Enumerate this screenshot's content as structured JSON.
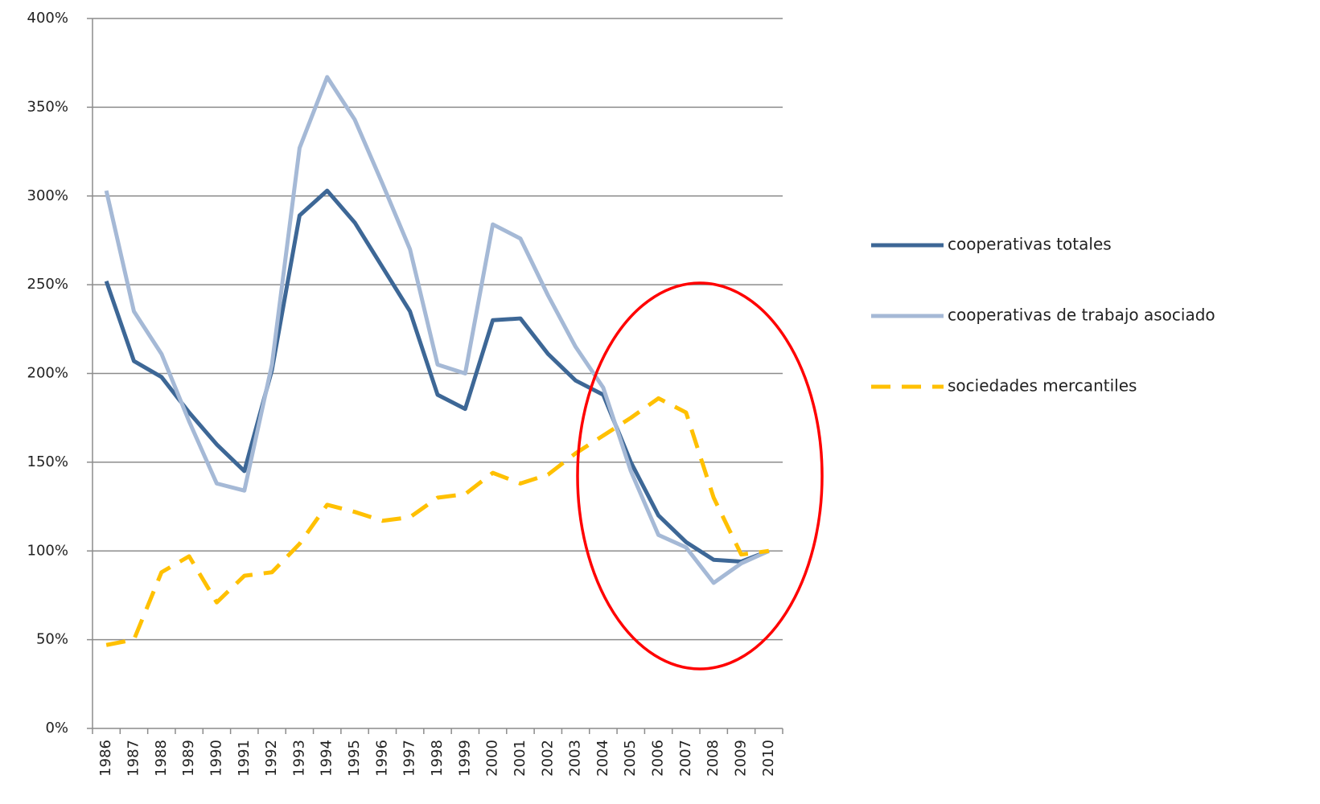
{
  "chart_data": {
    "type": "line",
    "categories": [
      "1986",
      "1987",
      "1988",
      "1989",
      "1990",
      "1991",
      "1992",
      "1993",
      "1994",
      "1995",
      "1996",
      "1997",
      "1998",
      "1999",
      "2000",
      "2001",
      "2002",
      "2003",
      "2004",
      "2005",
      "2006",
      "2007",
      "2008",
      "2009",
      "2010"
    ],
    "series": [
      {
        "name": "cooperativas totales",
        "color": "#3d6796",
        "dash": false,
        "values": [
          252,
          207,
          198,
          178,
          160,
          145,
          202,
          289,
          303,
          285,
          260,
          235,
          188,
          180,
          230,
          231,
          211,
          196,
          188,
          150,
          120,
          105,
          95,
          94,
          100
        ]
      },
      {
        "name": "cooperativas de trabajo asociado",
        "color": "#a5b9d6",
        "dash": false,
        "values": [
          303,
          235,
          211,
          173,
          138,
          134,
          205,
          327,
          367,
          343,
          307,
          270,
          205,
          200,
          284,
          276,
          244,
          215,
          192,
          145,
          109,
          102,
          82,
          93,
          100
        ]
      },
      {
        "name": "sociedades mercantiles",
        "color": "#ffc000",
        "dash": true,
        "values": [
          47,
          50,
          88,
          97,
          71,
          86,
          88,
          104,
          126,
          122,
          117,
          119,
          130,
          132,
          144,
          138,
          143,
          155,
          165,
          175,
          186,
          178,
          130,
          98,
          100
        ]
      }
    ],
    "ylim": [
      0,
      400
    ],
    "yticks": [
      {
        "value": 0,
        "label": "0%"
      },
      {
        "value": 50,
        "label": "50%"
      },
      {
        "value": 100,
        "label": "100%"
      },
      {
        "value": 150,
        "label": "150%"
      },
      {
        "value": 200,
        "label": "200%"
      },
      {
        "value": 250,
        "label": "250%"
      },
      {
        "value": 300,
        "label": "300%"
      },
      {
        "value": 350,
        "label": "350%"
      },
      {
        "value": 400,
        "label": "400%"
      }
    ],
    "grid": true,
    "legend": "right"
  }
}
